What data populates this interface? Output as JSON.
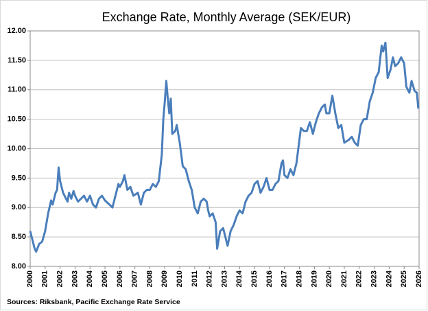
{
  "chart_data": {
    "type": "line",
    "title": "Exchange Rate, Monthly Average (SEK/EUR)",
    "source": "Sources: Riksbank, Pacific Exchange Rate Service",
    "color": "#4a7ebb",
    "grid": true,
    "xlim": [
      2000,
      2026
    ],
    "xticks": [
      2000,
      2001,
      2002,
      2003,
      2004,
      2005,
      2006,
      2007,
      2008,
      2009,
      2010,
      2011,
      2012,
      2013,
      2014,
      2015,
      2016,
      2017,
      2018,
      2019,
      2020,
      2021,
      2022,
      2023,
      2024,
      2025,
      2026
    ],
    "ylim": [
      8,
      12
    ],
    "yticks": [
      {
        "value": 8,
        "label": "8.00"
      },
      {
        "value": 8.5,
        "label": "8.50"
      },
      {
        "value": 9,
        "label": "9.00"
      },
      {
        "value": 9.5,
        "label": "9.50"
      },
      {
        "value": 10,
        "label": "10.00"
      },
      {
        "value": 10.5,
        "label": "10.50"
      },
      {
        "value": 11,
        "label": "11.00"
      },
      {
        "value": 11.5,
        "label": "11.50"
      },
      {
        "value": 12,
        "label": "12.00"
      }
    ],
    "x": [
      2000.0,
      2000.1,
      2000.3,
      2000.4,
      2000.6,
      2000.8,
      2001.0,
      2001.2,
      2001.4,
      2001.5,
      2001.7,
      2001.8,
      2001.9,
      2002.0,
      2002.2,
      2002.4,
      2002.5,
      2002.6,
      2002.75,
      2002.9,
      2003.0,
      2003.2,
      2003.4,
      2003.6,
      2003.8,
      2004.0,
      2004.2,
      2004.4,
      2004.6,
      2004.8,
      2005.0,
      2005.3,
      2005.5,
      2005.7,
      2005.9,
      2006.0,
      2006.2,
      2006.3,
      2006.5,
      2006.7,
      2006.9,
      2007.2,
      2007.4,
      2007.6,
      2007.8,
      2008.0,
      2008.2,
      2008.4,
      2008.6,
      2008.8,
      2008.9,
      2009.0,
      2009.1,
      2009.2,
      2009.3,
      2009.4,
      2009.5,
      2009.7,
      2009.8,
      2010.0,
      2010.2,
      2010.4,
      2010.6,
      2010.8,
      2011.0,
      2011.2,
      2011.4,
      2011.6,
      2011.8,
      2011.9,
      2012.0,
      2012.2,
      2012.4,
      2012.5,
      2012.7,
      2012.9,
      2013.0,
      2013.2,
      2013.4,
      2013.6,
      2013.8,
      2014.0,
      2014.2,
      2014.4,
      2014.6,
      2014.8,
      2015.0,
      2015.2,
      2015.4,
      2015.6,
      2015.8,
      2016.0,
      2016.2,
      2016.4,
      2016.6,
      2016.8,
      2016.9,
      2017.0,
      2017.2,
      2017.4,
      2017.6,
      2017.8,
      2017.9,
      2018.1,
      2018.3,
      2018.5,
      2018.7,
      2018.9,
      2019.1,
      2019.3,
      2019.5,
      2019.7,
      2019.8,
      2020.0,
      2020.2,
      2020.4,
      2020.6,
      2020.8,
      2021.0,
      2021.3,
      2021.5,
      2021.7,
      2021.9,
      2022.1,
      2022.3,
      2022.5,
      2022.7,
      2022.9,
      2023.1,
      2023.3,
      2023.5,
      2023.6,
      2023.75,
      2023.9,
      2024.1,
      2024.25,
      2024.4,
      2024.6,
      2024.8,
      2025.0,
      2025.15,
      2025.35,
      2025.5,
      2025.7,
      2025.85,
      2025.95
    ],
    "values": [
      8.6,
      8.5,
      8.3,
      8.25,
      8.38,
      8.42,
      8.6,
      8.9,
      9.12,
      9.05,
      9.25,
      9.3,
      9.68,
      9.45,
      9.25,
      9.15,
      9.1,
      9.25,
      9.15,
      9.28,
      9.2,
      9.1,
      9.15,
      9.2,
      9.1,
      9.2,
      9.05,
      9.0,
      9.15,
      9.2,
      9.12,
      9.05,
      9.0,
      9.2,
      9.4,
      9.35,
      9.45,
      9.55,
      9.3,
      9.35,
      9.2,
      9.25,
      9.05,
      9.25,
      9.3,
      9.3,
      9.4,
      9.35,
      9.45,
      9.9,
      10.5,
      10.8,
      11.15,
      10.85,
      10.6,
      10.85,
      10.25,
      10.3,
      10.4,
      10.1,
      9.7,
      9.65,
      9.45,
      9.3,
      9.0,
      8.9,
      9.1,
      9.15,
      9.1,
      8.95,
      8.85,
      8.9,
      8.75,
      8.3,
      8.6,
      8.65,
      8.55,
      8.35,
      8.6,
      8.7,
      8.85,
      8.95,
      8.9,
      9.1,
      9.2,
      9.25,
      9.4,
      9.45,
      9.25,
      9.35,
      9.5,
      9.3,
      9.3,
      9.4,
      9.45,
      9.75,
      9.8,
      9.55,
      9.5,
      9.65,
      9.55,
      9.75,
      9.95,
      10.35,
      10.3,
      10.3,
      10.45,
      10.25,
      10.45,
      10.6,
      10.7,
      10.75,
      10.6,
      10.6,
      10.9,
      10.6,
      10.35,
      10.4,
      10.1,
      10.15,
      10.2,
      10.1,
      10.05,
      10.4,
      10.5,
      10.5,
      10.8,
      10.95,
      11.2,
      11.3,
      11.75,
      11.65,
      11.8,
      11.2,
      11.35,
      11.55,
      11.4,
      11.45,
      11.55,
      11.45,
      11.05,
      10.95,
      11.15,
      10.98,
      10.95,
      10.68
    ]
  }
}
